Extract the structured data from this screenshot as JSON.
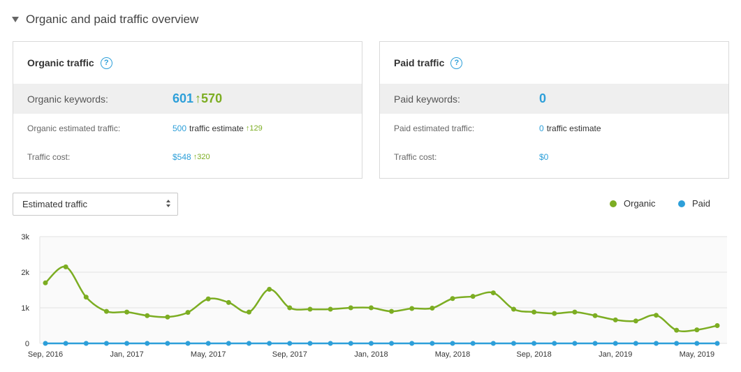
{
  "section": {
    "title": "Organic and paid traffic overview"
  },
  "organic_card": {
    "title": "Organic traffic",
    "help": "?",
    "keywords_label": "Organic keywords:",
    "keywords_value": "601",
    "keywords_change": "570",
    "traffic_label": "Organic estimated traffic:",
    "traffic_value": "500",
    "traffic_suffix": "traffic estimate",
    "traffic_change": "129",
    "cost_label": "Traffic cost:",
    "cost_value": "$548",
    "cost_change": "320"
  },
  "paid_card": {
    "title": "Paid traffic",
    "help": "?",
    "keywords_label": "Paid keywords:",
    "keywords_value": "0",
    "traffic_label": "Paid estimated traffic:",
    "traffic_value": "0",
    "traffic_suffix": "traffic estimate",
    "cost_label": "Traffic cost:",
    "cost_value": "$0"
  },
  "metric_select": {
    "selected": "Estimated traffic"
  },
  "legend": {
    "organic": "Organic",
    "paid": "Paid"
  },
  "colors": {
    "organic": "#7cad22",
    "paid": "#2d9fd9",
    "accent": "#2d9fd9"
  },
  "chart_data": {
    "type": "line",
    "x": [
      "2016-09",
      "2016-10",
      "2016-11",
      "2016-12",
      "2017-01",
      "2017-02",
      "2017-03",
      "2017-04",
      "2017-05",
      "2017-06",
      "2017-07",
      "2017-08",
      "2017-09",
      "2017-10",
      "2017-11",
      "2017-12",
      "2018-01",
      "2018-02",
      "2018-03",
      "2018-04",
      "2018-05",
      "2018-06",
      "2018-07",
      "2018-08",
      "2018-09",
      "2018-10",
      "2018-11",
      "2018-12",
      "2019-01",
      "2019-02",
      "2019-03",
      "2019-04",
      "2019-05",
      "2019-06"
    ],
    "x_tick_labels": [
      "Sep, 2016",
      "Jan, 2017",
      "May, 2017",
      "Sep, 2017",
      "Jan, 2018",
      "May, 2018",
      "Sep, 2018",
      "Jan, 2019",
      "May, 2019"
    ],
    "x_tick_positions": [
      "2016-09",
      "2017-01",
      "2017-05",
      "2017-09",
      "2018-01",
      "2018-05",
      "2018-09",
      "2019-01",
      "2019-05"
    ],
    "y_tick_labels": [
      "0",
      "1k",
      "2k",
      "3k"
    ],
    "y_tick_values": [
      0,
      1000,
      2000,
      3000
    ],
    "ylim": [
      0,
      3000
    ],
    "grid": true,
    "legend_position": "top-right",
    "series": [
      {
        "name": "Organic",
        "values": [
          1700,
          2150,
          1300,
          900,
          880,
          780,
          740,
          870,
          1250,
          1150,
          880,
          1520,
          1000,
          960,
          960,
          1000,
          1000,
          900,
          980,
          990,
          1260,
          1320,
          1420,
          960,
          880,
          840,
          880,
          780,
          660,
          630,
          790,
          370,
          380,
          500
        ]
      },
      {
        "name": "Paid",
        "values": [
          0,
          0,
          0,
          0,
          0,
          0,
          0,
          0,
          0,
          0,
          0,
          0,
          0,
          0,
          0,
          0,
          0,
          0,
          0,
          0,
          0,
          0,
          0,
          0,
          0,
          0,
          0,
          0,
          0,
          0,
          0,
          0,
          0,
          0
        ]
      }
    ]
  }
}
